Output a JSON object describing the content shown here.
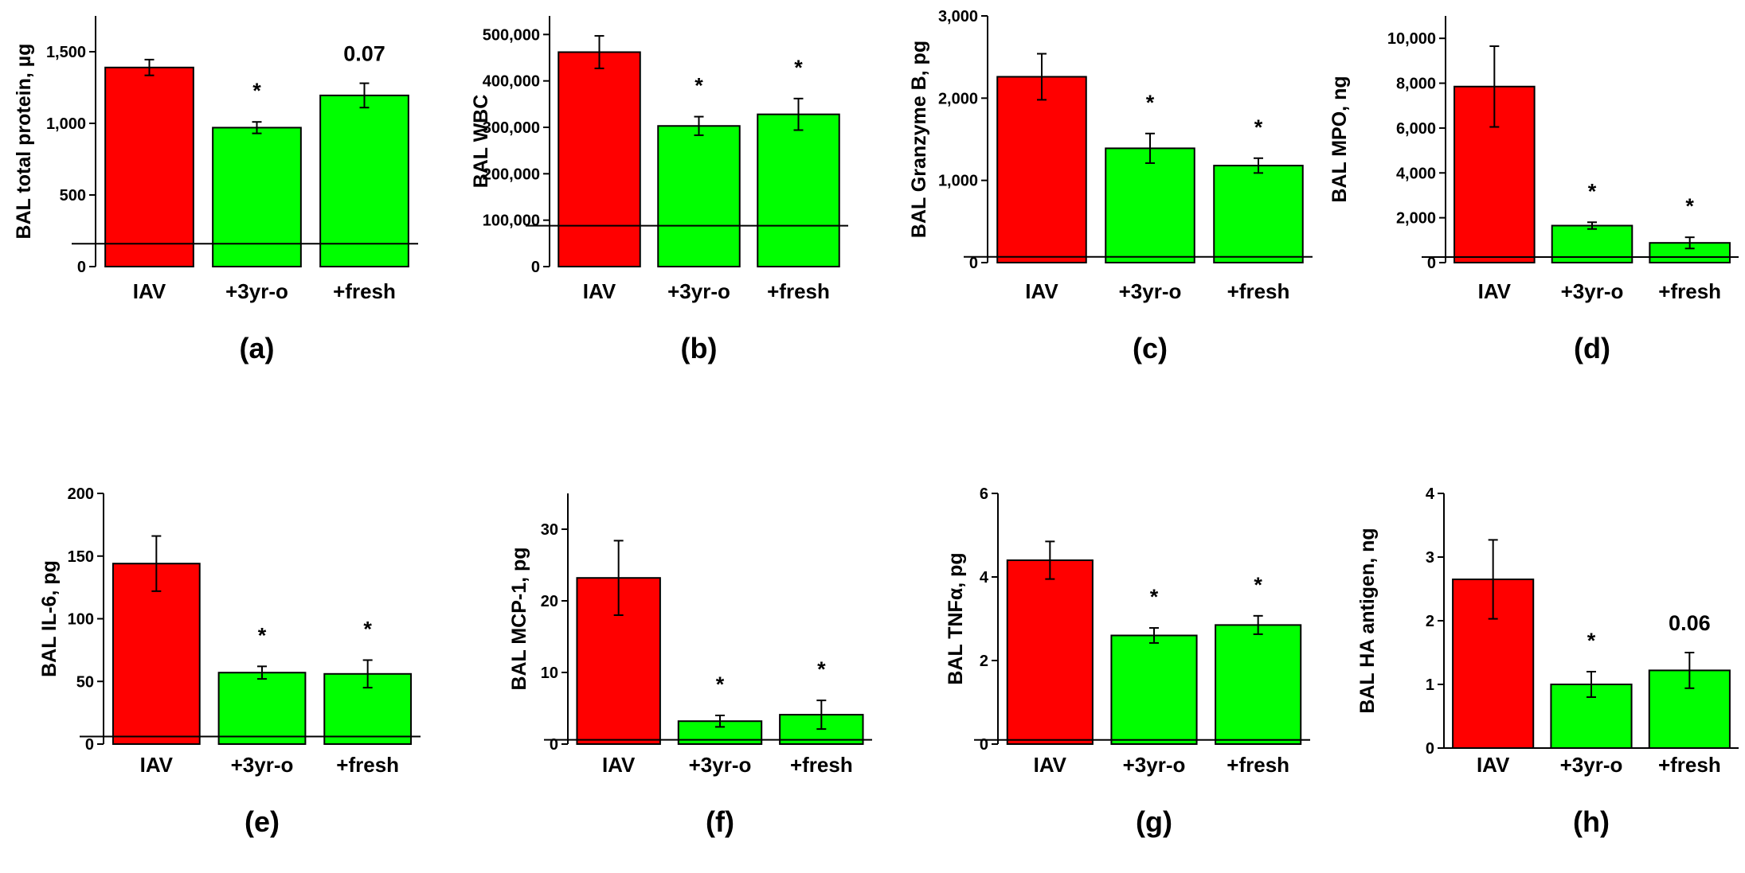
{
  "figure": {
    "bar_colors": [
      "#ff0000",
      "#00ff00",
      "#00ff00"
    ]
  },
  "chart_data": [
    {
      "panel": "(a)",
      "type": "bar",
      "categories": [
        "IAV",
        "+3yr-o",
        "+fresh"
      ],
      "values": [
        1390,
        970,
        1195
      ],
      "errors": [
        55,
        40,
        85
      ],
      "annotations": [
        "",
        "*",
        "0.07"
      ],
      "ylabel": "BAL total protein, µg",
      "ylim": [
        0,
        1750
      ],
      "yticks": [
        0,
        500,
        1000,
        1500
      ],
      "ytick_labels": [
        "0",
        "500",
        "1,000",
        "1,500"
      ],
      "baseline": 160
    },
    {
      "panel": "(b)",
      "type": "bar",
      "categories": [
        "IAV",
        "+3yr-o",
        "+fresh"
      ],
      "values": [
        462000,
        303000,
        328000
      ],
      "errors": [
        35000,
        20000,
        34000
      ],
      "annotations": [
        "",
        "*",
        "*"
      ],
      "ylabel": "BAL WBC",
      "ylim": [
        0,
        540000
      ],
      "yticks": [
        0,
        100000,
        200000,
        300000,
        400000,
        500000
      ],
      "ytick_labels": [
        "0",
        "100,000",
        "200,000",
        "300,000",
        "400,000",
        "500,000"
      ],
      "baseline": 88000
    },
    {
      "panel": "(c)",
      "type": "bar",
      "categories": [
        "IAV",
        "+3yr-o",
        "+fresh"
      ],
      "values": [
        2260,
        1390,
        1180
      ],
      "errors": [
        280,
        180,
        90
      ],
      "annotations": [
        "",
        "*",
        "*"
      ],
      "ylabel": "BAL Granzyme B, pg",
      "ylim": [
        0,
        3000
      ],
      "yticks": [
        0,
        1000,
        2000,
        3000
      ],
      "ytick_labels": [
        "0",
        "1,000",
        "2,000",
        "3,000"
      ],
      "baseline": 70
    },
    {
      "panel": "(d)",
      "type": "bar",
      "categories": [
        "IAV",
        "+3yr-o",
        "+fresh"
      ],
      "values": [
        7850,
        1650,
        880
      ],
      "errors": [
        1800,
        150,
        250
      ],
      "annotations": [
        "",
        "*",
        "*"
      ],
      "ylabel": "BAL MPO, ng",
      "ylim": [
        0,
        11000
      ],
      "yticks": [
        0,
        2000,
        4000,
        6000,
        8000,
        10000
      ],
      "ytick_labels": [
        "0",
        "2,000",
        "4,000",
        "6,000",
        "8,000",
        "10,000"
      ],
      "baseline": 250
    },
    {
      "panel": "(e)",
      "type": "bar",
      "categories": [
        "IAV",
        "+3yr-o",
        "+fresh"
      ],
      "values": [
        144,
        57,
        56
      ],
      "errors": [
        22,
        5,
        11
      ],
      "annotations": [
        "",
        "*",
        "*"
      ],
      "ylabel": "BAL IL-6, pg",
      "ylim": [
        0,
        200
      ],
      "yticks": [
        0,
        50,
        100,
        150,
        200
      ],
      "ytick_labels": [
        "0",
        "50",
        "100",
        "150",
        "200"
      ],
      "baseline": 6
    },
    {
      "panel": "(f)",
      "type": "bar",
      "categories": [
        "IAV",
        "+3yr-o",
        "+fresh"
      ],
      "values": [
        23.2,
        3.2,
        4.1
      ],
      "errors": [
        5.2,
        0.8,
        2.0
      ],
      "annotations": [
        "",
        "*",
        "*"
      ],
      "ylabel": "BAL MCP-1, pg",
      "ylim": [
        0,
        35
      ],
      "yticks": [
        0,
        10,
        20,
        30
      ],
      "ytick_labels": [
        "0",
        "10",
        "20",
        "30"
      ],
      "baseline": 0.6
    },
    {
      "panel": "(g)",
      "type": "bar",
      "categories": [
        "IAV",
        "+3yr-o",
        "+fresh"
      ],
      "values": [
        4.4,
        2.6,
        2.85
      ],
      "errors": [
        0.45,
        0.18,
        0.22
      ],
      "annotations": [
        "",
        "*",
        "*"
      ],
      "ylabel": "BAL TNFα, pg",
      "ylim": [
        0,
        6
      ],
      "yticks": [
        0,
        2,
        4,
        6
      ],
      "ytick_labels": [
        "0",
        "2",
        "4",
        "6"
      ],
      "baseline": 0.1
    },
    {
      "panel": "(h)",
      "type": "bar",
      "categories": [
        "IAV",
        "+3yr-o",
        "+fresh"
      ],
      "values": [
        2.65,
        1.0,
        1.22
      ],
      "errors": [
        0.62,
        0.2,
        0.28
      ],
      "annotations": [
        "",
        "*",
        "0.06"
      ],
      "ylabel": "BAL HA antigen, ng",
      "ylim": [
        0,
        4
      ],
      "yticks": [
        0,
        1,
        2,
        3,
        4
      ],
      "ytick_labels": [
        "0",
        "1",
        "2",
        "3",
        "4"
      ],
      "baseline": null
    }
  ]
}
